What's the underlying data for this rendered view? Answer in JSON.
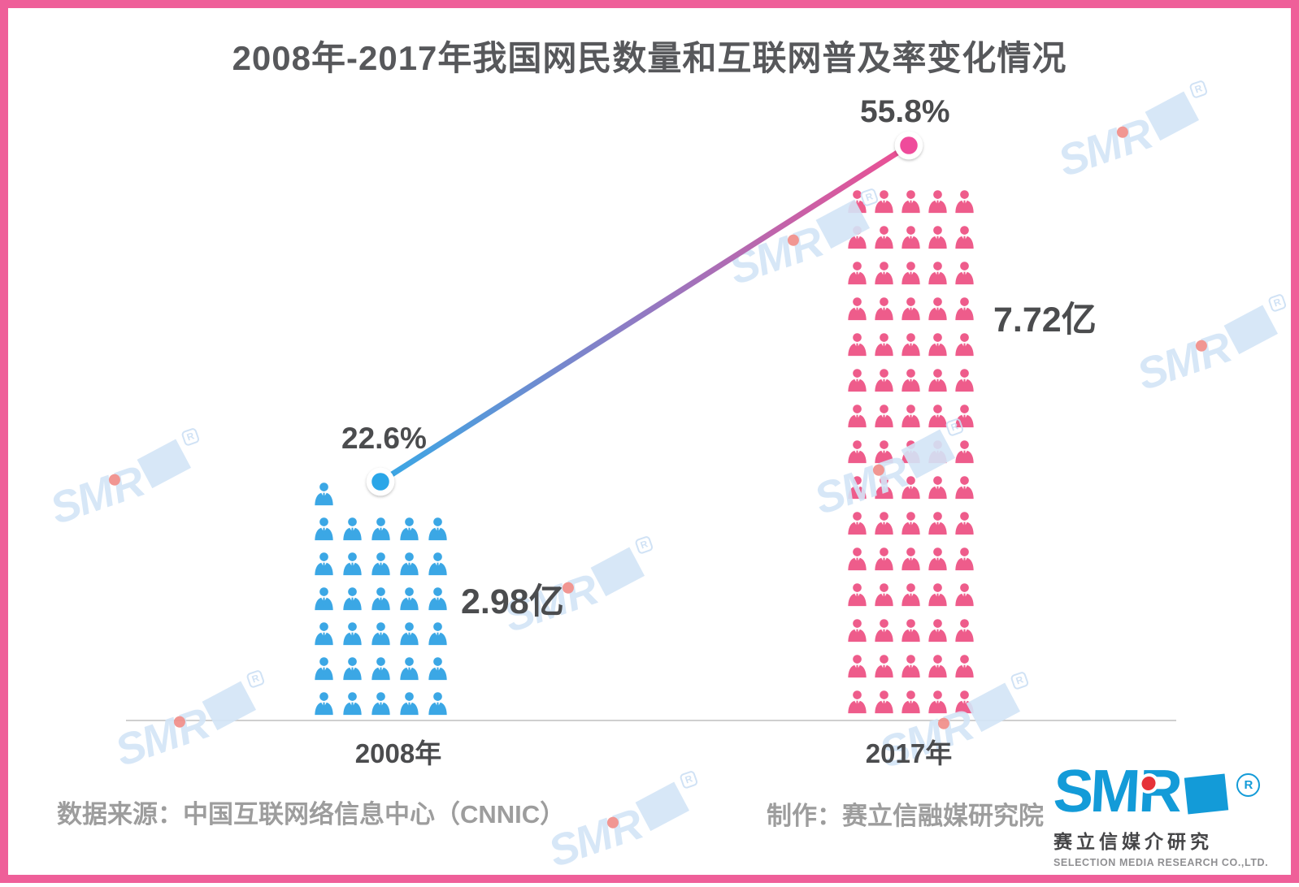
{
  "title": "2008年-2017年我国网民数量和互联网普及率变化情况",
  "chart_data": {
    "type": "pictograph_line_combo",
    "categories": [
      "2008年",
      "2017年"
    ],
    "x_axis_labels": [
      "2008年",
      "2017年"
    ],
    "series": [
      {
        "name": "网民数量",
        "type": "pictograph",
        "unit": "亿",
        "values": [
          2.98,
          7.72
        ],
        "data_labels": [
          "2.98亿",
          "7.72亿"
        ],
        "colors": [
          "#3BA7E5",
          "#EE5C8B"
        ],
        "icon": "person",
        "icon_counts": [
          31,
          75
        ],
        "icon_rows": {
          "2008": [
            1,
            5,
            5,
            5,
            5,
            5,
            5
          ],
          "2017": [
            5,
            5,
            5,
            5,
            5,
            5,
            5,
            5,
            5,
            5,
            5,
            5,
            5,
            5,
            5
          ]
        }
      },
      {
        "name": "互联网普及率",
        "type": "line",
        "unit": "%",
        "values": [
          22.6,
          55.8
        ],
        "data_labels": [
          "22.6%",
          "55.8%"
        ],
        "point_colors": [
          "#2CA6E8",
          "#EF4C9B"
        ],
        "gradient": [
          "#38A8E6",
          "#9279C2",
          "#EE4F93"
        ]
      }
    ],
    "legend": "off",
    "grid": "off"
  },
  "footer": {
    "source": "数据来源：中国互联网络信息中心（CNNIC）",
    "credit": "制作：赛立信融媒研究院"
  },
  "branding": {
    "logo_sm": "SM",
    "logo_r": "R",
    "registered_mark": "R",
    "logo_cn": "赛立信媒介研究",
    "logo_en": "SELECTION MEDIA RESEARCH CO.,LTD.",
    "logo_blue": "#139BD8",
    "logo_red": "#E63239",
    "watermark_color": "#D3E5F6",
    "border_color": "#EF5F99"
  }
}
